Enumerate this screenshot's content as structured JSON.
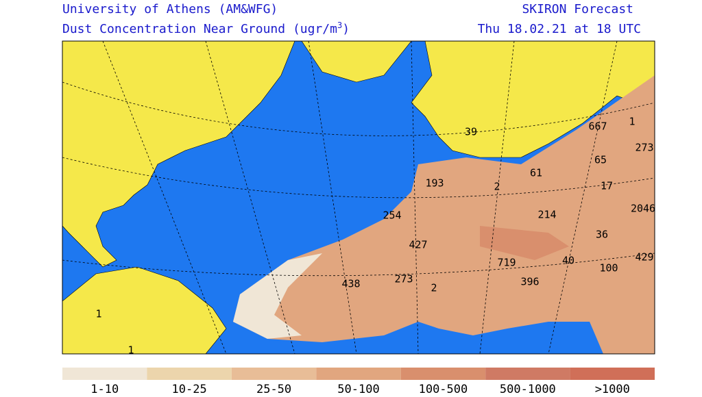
{
  "header": {
    "left_line1": "University of Athens (AM&WFG)",
    "left_line2": {
      "text": "Dust Concentration Near Ground (ugr/m",
      "sup": "3",
      "end": ")"
    },
    "right_line1": "SKIRON Forecast",
    "right_line2": "Thu 18.02.21 at 18 UTC"
  },
  "map_labels": [
    "667",
    "1",
    "273",
    "65",
    "17",
    "2046",
    "36",
    "429",
    "100",
    "40",
    "396",
    "719",
    "214",
    "61",
    "2",
    "193",
    "39",
    "254",
    "427",
    "438",
    "273",
    "2",
    "1",
    "1"
  ],
  "legend": {
    "labels": [
      "1-10",
      "10-25",
      "25-50",
      "50-100",
      "100-500",
      "500-1000",
      ">1000"
    ],
    "colors": [
      "#f0e6d6",
      "#ecd5ac",
      "#e8bd97",
      "#e1a67f",
      "#d98f6d",
      "#cf7a64",
      "#d06f58"
    ]
  }
}
